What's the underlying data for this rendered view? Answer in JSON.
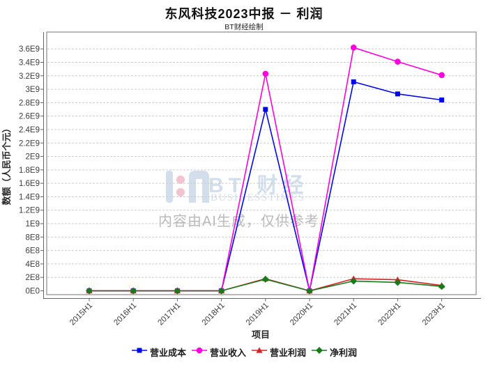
{
  "title": "东风科技2023中报 － 利润",
  "subtitle": "BT财经绘制",
  "watermark": {
    "logo_text": "BT 财经",
    "logo_subtext": "BUSINESSTIMES",
    "disclaimer": "内容由AI生成，仅供参考",
    "color": "#d3deec",
    "note_color": "#b9b9b9",
    "pink": "#f3c3ce"
  },
  "chart_data": {
    "type": "line",
    "title": "东风科技2023中报 － 利润",
    "xlabel": "项目",
    "ylabel": "数额（人民币个元）",
    "categories": [
      "2015H1",
      "2016H1",
      "2017H1",
      "2018H1",
      "2019H1",
      "2020H1",
      "2021H1",
      "2022H1",
      "2023H1"
    ],
    "ylim": [
      0,
      3600000000.0
    ],
    "ytick_step": 200000000.0,
    "yticklabels": [
      "0E0",
      "2E8",
      "4E8",
      "6E8",
      "8E8",
      "1E9",
      "1.2E9",
      "1.4E9",
      "1.6E9",
      "1.8E9",
      "2E9",
      "2.2E9",
      "2.4E9",
      "2.6E9",
      "2.8E9",
      "3E9",
      "3.2E9",
      "3.4E9",
      "3.6E9"
    ],
    "grid": "horizontal-dashed",
    "legend_position": "bottom",
    "series": [
      {
        "name": "营业成本",
        "marker": "square",
        "color": "#0008e8",
        "values": [
          0,
          0,
          0,
          0,
          2700000000.0,
          0,
          3110000000.0,
          2930000000.0,
          2840000000.0
        ]
      },
      {
        "name": "营业收入",
        "marker": "circle",
        "color": "#ff00dd",
        "values": [
          0,
          0,
          0,
          0,
          3230000000.0,
          0,
          3620000000.0,
          3410000000.0,
          3210000000.0
        ]
      },
      {
        "name": "营业利润",
        "marker": "triangle",
        "color": "#d42222",
        "values": [
          0,
          0,
          0,
          0,
          180000000.0,
          0,
          180000000.0,
          165000000.0,
          80000000.0
        ]
      },
      {
        "name": "净利润",
        "marker": "diamond",
        "color": "#1a7a1a",
        "values": [
          0,
          0,
          0,
          0,
          172000000.0,
          0,
          145000000.0,
          125000000.0,
          65000000.0
        ]
      }
    ]
  }
}
